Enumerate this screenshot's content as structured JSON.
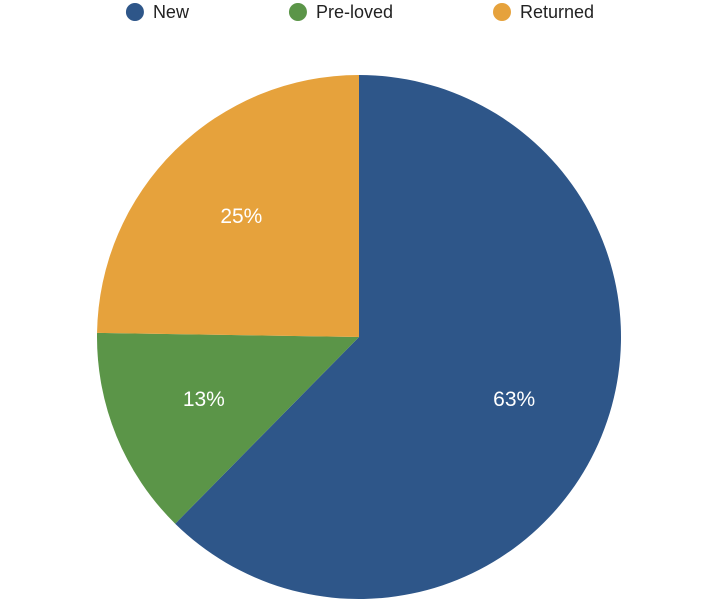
{
  "chart_data": {
    "type": "pie",
    "categories": [
      "New",
      "Pre-loved",
      "Returned"
    ],
    "values": [
      63,
      13,
      25
    ],
    "value_labels": [
      "63%",
      "13%",
      "25%"
    ],
    "colors": [
      "#2e5689",
      "#5b9548",
      "#e6a23c"
    ],
    "legend": "top"
  }
}
